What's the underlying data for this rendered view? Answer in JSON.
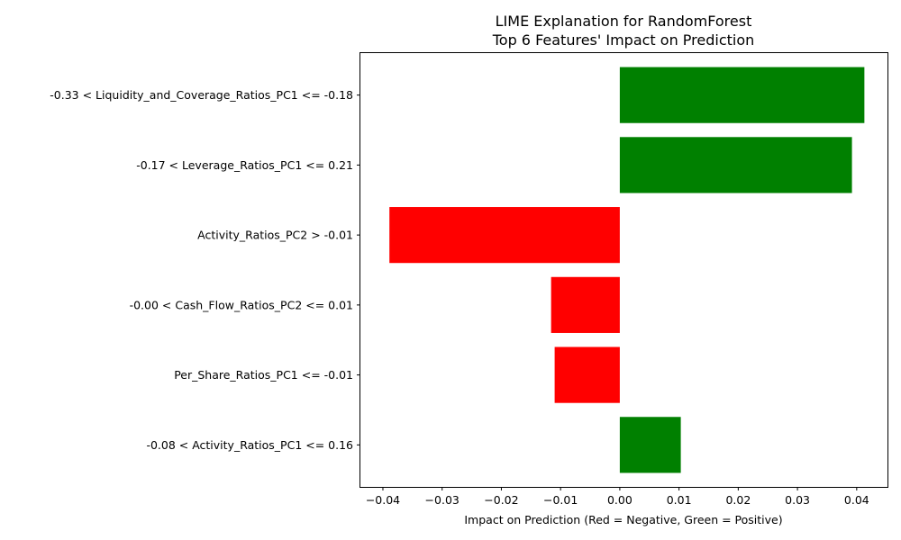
{
  "chart_data": {
    "type": "bar",
    "orientation": "horizontal",
    "title": "LIME Explanation for RandomForest",
    "subtitle": "Top 6 Features' Impact on Prediction",
    "xlabel": "Impact on Prediction (Red = Negative, Green = Positive)",
    "ylabel": "",
    "xlim": [
      -0.0438,
      0.0452
    ],
    "xticks": [
      -0.04,
      -0.03,
      -0.02,
      -0.01,
      0.0,
      0.01,
      0.02,
      0.03,
      0.04
    ],
    "xtick_labels": [
      "−0.04",
      "−0.03",
      "−0.02",
      "−0.01",
      "0.00",
      "0.01",
      "0.02",
      "0.03",
      "0.04"
    ],
    "grid": false,
    "legend": "none",
    "colors": {
      "positive": "#008000",
      "negative": "#ff0000"
    },
    "categories": [
      "-0.33 < Liquidity_and_Coverage_Ratios_PC1 <= -0.18",
      "-0.17 < Leverage_Ratios_PC1 <= 0.21",
      "Activity_Ratios_PC2 > -0.01",
      "-0.00 < Cash_Flow_Ratios_PC2 <= 0.01",
      "Per_Share_Ratios_PC1 <= -0.01",
      "-0.08 < Activity_Ratios_PC1 <= 0.16"
    ],
    "values": [
      0.0413,
      0.0392,
      -0.0389,
      -0.0116,
      -0.011,
      0.0103
    ]
  }
}
